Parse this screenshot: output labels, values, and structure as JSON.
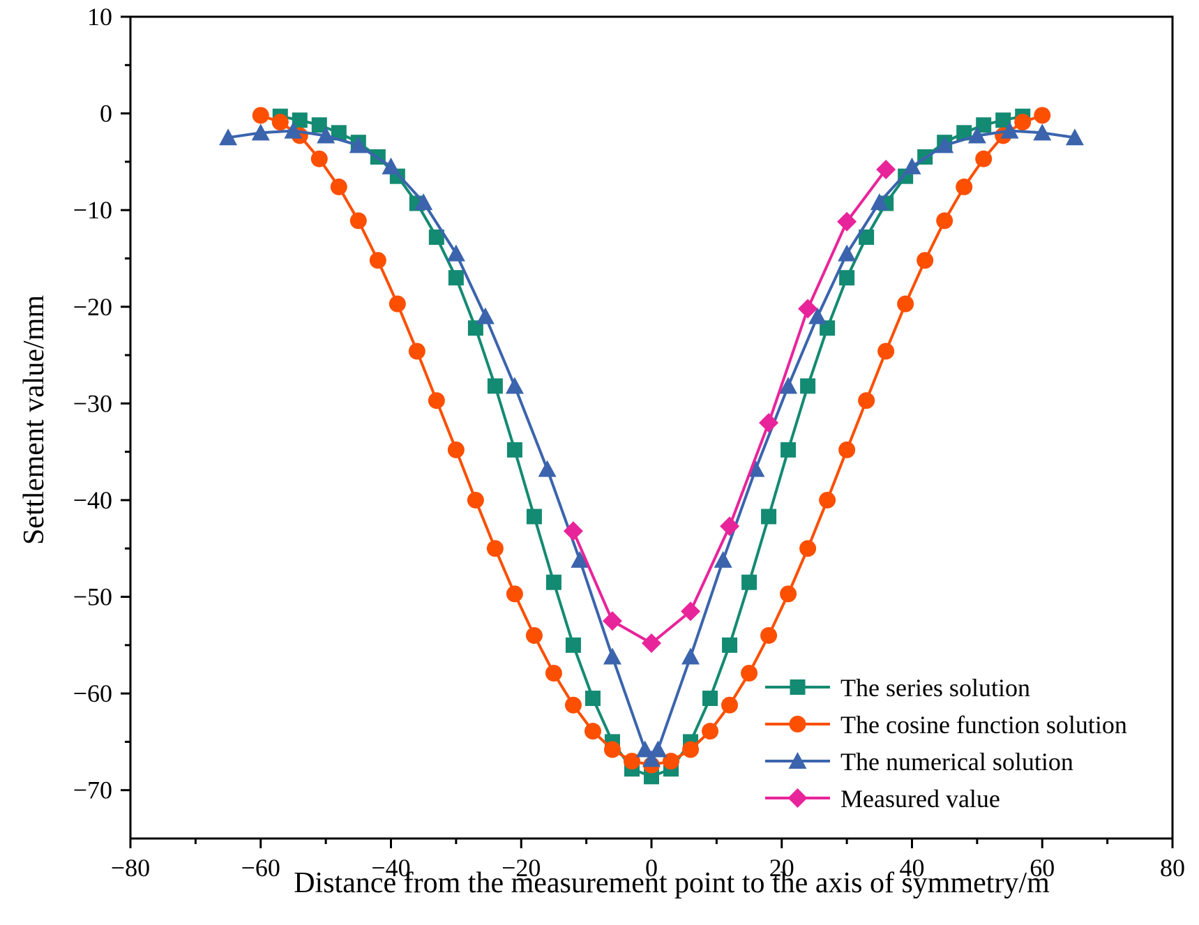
{
  "chart_data": {
    "type": "line",
    "title": "",
    "xlabel": "Distance from the measurement point to the axis of symmetry/m",
    "ylabel": "Settlement value/mm",
    "xlim": [
      -80,
      80
    ],
    "ylim": [
      -75,
      10
    ],
    "xticks": [
      -80,
      -60,
      -40,
      -20,
      0,
      20,
      40,
      60,
      80
    ],
    "yticks": [
      10,
      0,
      -10,
      -20,
      -30,
      -40,
      -50,
      -60,
      -70
    ],
    "xtick_labels": [
      "−80",
      "−60",
      "−40",
      "−20",
      "0",
      "20",
      "40",
      "60",
      "80"
    ],
    "ytick_labels": [
      "10",
      "0",
      "−10",
      "−20",
      "−30",
      "−40",
      "−50",
      "−60",
      "−70"
    ],
    "grid": false,
    "legend_position": "bottom-right",
    "series": [
      {
        "name": "The series solution",
        "color": "#138a72",
        "marker": "square",
        "x": [
          -57,
          -54,
          -51,
          -48,
          -45,
          -42,
          -39,
          -36,
          -33,
          -30,
          -27,
          -24,
          -21,
          -18,
          -15,
          -12,
          -9,
          -6,
          -3,
          0,
          3,
          6,
          9,
          12,
          15,
          18,
          21,
          24,
          27,
          30,
          33,
          36,
          39,
          42,
          45,
          48,
          51,
          54,
          57
        ],
        "y": [
          -0.3,
          -0.7,
          -1.2,
          -2.0,
          -3.0,
          -4.5,
          -6.5,
          -9.3,
          -12.8,
          -17.0,
          -22.2,
          -28.2,
          -34.8,
          -41.7,
          -48.5,
          -55.0,
          -60.5,
          -65.0,
          -67.8,
          -68.6,
          -67.8,
          -65.0,
          -60.5,
          -55.0,
          -48.5,
          -41.7,
          -34.8,
          -28.2,
          -22.2,
          -17.0,
          -12.8,
          -9.3,
          -6.5,
          -4.5,
          -3.0,
          -2.0,
          -1.2,
          -0.7,
          -0.3
        ]
      },
      {
        "name": "The cosine function solution",
        "color": "#fc4f00",
        "marker": "circle",
        "x": [
          -60,
          -57,
          -54,
          -51,
          -48,
          -45,
          -42,
          -39,
          -36,
          -33,
          -30,
          -27,
          -24,
          -21,
          -18,
          -15,
          -12,
          -9,
          -6,
          -3,
          0,
          3,
          6,
          9,
          12,
          15,
          18,
          21,
          24,
          27,
          30,
          33,
          36,
          39,
          42,
          45,
          48,
          51,
          54,
          57,
          60
        ],
        "y": [
          -0.2,
          -0.9,
          -2.3,
          -4.7,
          -7.6,
          -11.1,
          -15.2,
          -19.7,
          -24.6,
          -29.7,
          -34.8,
          -40.0,
          -45.0,
          -49.7,
          -54.0,
          -57.9,
          -61.2,
          -63.9,
          -65.8,
          -67.0,
          -67.4,
          -67.0,
          -65.8,
          -63.9,
          -61.2,
          -57.9,
          -54.0,
          -49.7,
          -45.0,
          -40.0,
          -34.8,
          -29.7,
          -24.6,
          -19.7,
          -15.2,
          -11.1,
          -7.6,
          -4.7,
          -2.3,
          -0.9,
          -0.2
        ]
      },
      {
        "name": "The numerical solution",
        "color": "#3b64ad",
        "marker": "triangle",
        "x": [
          -65,
          -60,
          -55,
          -50,
          -45,
          -40,
          -35,
          -30,
          -25.5,
          -21,
          -16,
          -11,
          -6,
          -1,
          0,
          1,
          6,
          11,
          16,
          21,
          25.5,
          30,
          35,
          40,
          45,
          50,
          55,
          60,
          65
        ],
        "y": [
          -2.5,
          -2.0,
          -1.8,
          -2.3,
          -3.3,
          -5.5,
          -9.2,
          -14.5,
          -21.0,
          -28.2,
          -36.8,
          -46.2,
          -56.2,
          -65.8,
          -66.8,
          -65.8,
          -56.2,
          -46.2,
          -36.8,
          -28.2,
          -21.0,
          -14.5,
          -9.2,
          -5.5,
          -3.3,
          -2.3,
          -1.8,
          -2.0,
          -2.5
        ]
      },
      {
        "name": "Measured value",
        "color": "#e8249a",
        "marker": "diamond",
        "x": [
          -12,
          -6,
          0,
          6,
          12,
          18,
          24,
          30,
          36
        ],
        "y": [
          -43.2,
          -52.5,
          -54.8,
          -51.5,
          -42.7,
          -32.0,
          -20.2,
          -11.2,
          -5.8
        ]
      }
    ]
  }
}
